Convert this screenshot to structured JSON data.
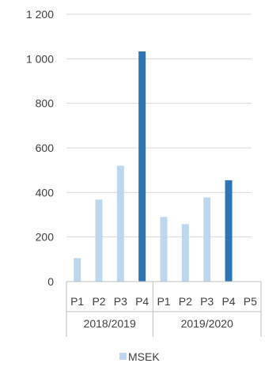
{
  "chart_data": {
    "type": "bar",
    "categories": [
      "P1",
      "P2",
      "P3",
      "P4",
      "P1",
      "P2",
      "P3",
      "P4",
      "P5"
    ],
    "groups": [
      {
        "label": "2018/2019",
        "count": 4
      },
      {
        "label": "2019/2020",
        "count": 5
      }
    ],
    "series": [
      {
        "name": "MSEK",
        "values": [
          105,
          368,
          520,
          1033,
          290,
          258,
          378,
          455,
          null
        ]
      }
    ],
    "highlighted": [
      false,
      false,
      false,
      true,
      false,
      false,
      false,
      true,
      false
    ],
    "yticks": [
      "1 200",
      "1 000",
      "800",
      "600",
      "400",
      "200",
      "0"
    ],
    "ylim": [
      0,
      1200
    ],
    "grid": true,
    "legend_position": "bottom",
    "colors": {
      "light": "#bdd7ee",
      "dark": "#2e75b6",
      "grid": "#d9d9d9",
      "axis": "#bfbfbf",
      "text": "#404040"
    }
  }
}
